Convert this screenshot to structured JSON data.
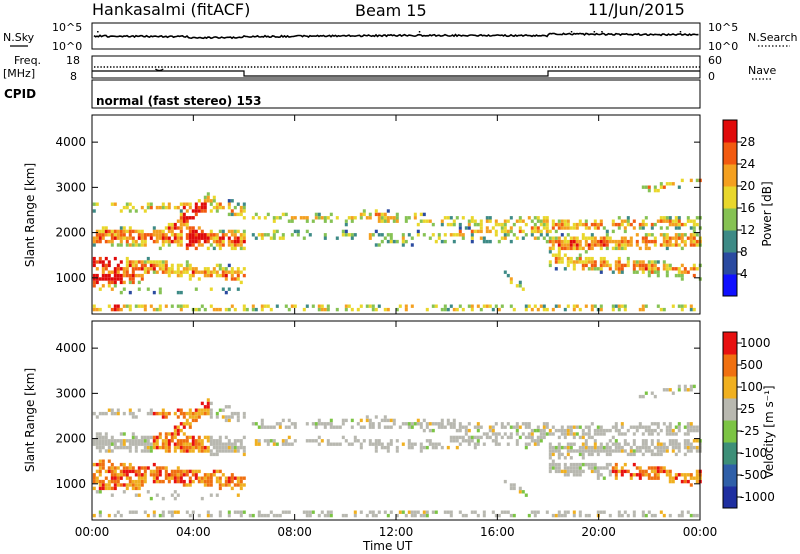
{
  "header": {
    "station": "Hankasalmi (fitACF)",
    "beam": "Beam 15",
    "date": "11/Jun/2015"
  },
  "panels": {
    "nsky": {
      "label": "N.Sky",
      "right_label": "N.Search",
      "left_ticks": [
        "10^5",
        "10^0"
      ],
      "right_ticks": [
        "10^5",
        "10^0"
      ]
    },
    "freq": {
      "label_top": "Freq.",
      "label_unit": "[MHz]",
      "right_label": "Nave",
      "left_ticks": [
        "18",
        "8"
      ],
      "right_ticks": [
        "60",
        "0"
      ]
    },
    "cpid": {
      "label": "CPID",
      "value": "normal (fast stereo) 153"
    }
  },
  "chart_data": [
    {
      "type": "heatmap",
      "name": "power",
      "ylabel": "Slant Range [km]",
      "xlabel": "",
      "x_ticks": [
        "00:00",
        "04:00",
        "08:00",
        "12:00",
        "16:00",
        "20:00",
        "00:00"
      ],
      "xlim_hours": [
        0,
        24
      ],
      "ylim": [
        200,
        4600
      ],
      "y_ticks": [
        1000,
        2000,
        3000,
        4000
      ],
      "colorbar": {
        "label": "Power [dB]",
        "tick_labels": [
          "4",
          "8",
          "12",
          "16",
          "20",
          "24",
          "28"
        ],
        "range": [
          0,
          30
        ],
        "colors": [
          "#1010ff",
          "#2a4aa0",
          "#3d8a86",
          "#86c254",
          "#e9d72c",
          "#f4a020",
          "#f25a10",
          "#e00a0a"
        ]
      }
    },
    {
      "type": "heatmap",
      "name": "velocity",
      "ylabel": "Slant Range [km]",
      "xlabel": "Time UT",
      "x_ticks": [
        "00:00",
        "04:00",
        "08:00",
        "12:00",
        "16:00",
        "20:00",
        "00:00"
      ],
      "xlim_hours": [
        0,
        24
      ],
      "ylim": [
        200,
        4600
      ],
      "y_ticks": [
        1000,
        2000,
        3000,
        4000
      ],
      "colorbar": {
        "label": "Velocity [m s⁻¹]",
        "tick_labels": [
          "1000",
          "500",
          "100",
          "25",
          "-25",
          "-100",
          "-500",
          "-1000"
        ],
        "colors": [
          "#1f2fa0",
          "#2f5fa8",
          "#3d8f78",
          "#7cc444",
          "#b8b8b0",
          "#f0b020",
          "#f07010",
          "#e81010"
        ]
      }
    }
  ]
}
